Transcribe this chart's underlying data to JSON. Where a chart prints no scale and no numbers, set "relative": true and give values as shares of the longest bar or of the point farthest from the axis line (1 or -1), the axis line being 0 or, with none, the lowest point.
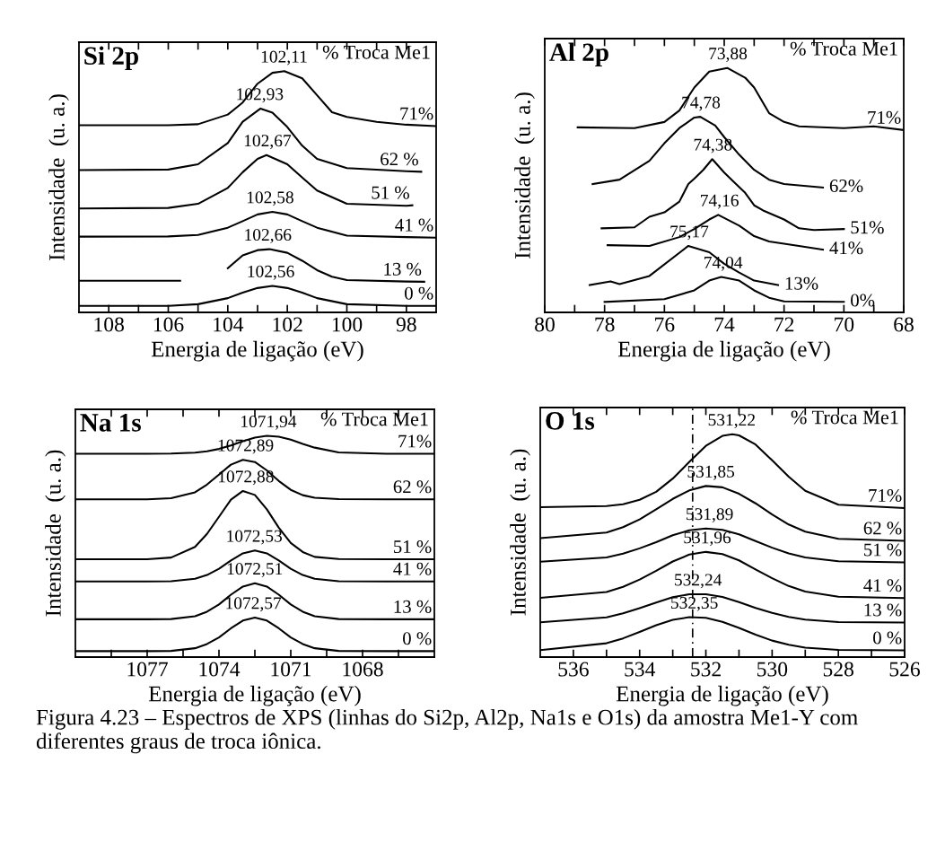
{
  "chart_data": [
    {
      "type": "line",
      "title": "Si 2p",
      "legend_title": "% Troca Me1",
      "xlabel": "Energia de ligação (eV)",
      "ylabel": "Intensidade  (u. a.)",
      "relative": true,
      "tick_labels": "x",
      "xlim": [
        109,
        97
      ],
      "xticks": [
        108,
        {
          "value": 107,
          "label": null
        },
        106,
        {
          "value": 105,
          "label": null
        },
        104,
        {
          "value": 103,
          "label": null
        },
        102,
        {
          "value": 101,
          "label": null
        },
        100,
        {
          "value": 99,
          "label": null
        },
        98
      ],
      "series": [
        {
          "name": "71%",
          "color": "#000000",
          "x": [
            109,
            106,
            105,
            104,
            103.5,
            103,
            102.5,
            102.1,
            101.5,
            101,
            100.5,
            100,
            99,
            98,
            97
          ],
          "values": [
            0.776,
            0.776,
            0.78,
            0.82,
            0.87,
            0.948,
            0.993,
            1,
            0.97,
            0.9,
            0.83,
            0.81,
            0.79,
            0.778,
            0.772
          ]
        },
        {
          "name": "62 %",
          "color": "#000000",
          "x": [
            109,
            106,
            105,
            104,
            103.5,
            102.9,
            102.5,
            102,
            101.5,
            101,
            100,
            98,
            97.5
          ],
          "values": [
            0.59,
            0.592,
            0.614,
            0.702,
            0.79,
            0.845,
            0.828,
            0.768,
            0.691,
            0.636,
            0.598,
            0.585,
            0.583
          ]
        },
        {
          "name": "51 %",
          "color": "#000000",
          "x": [
            109,
            106,
            105,
            104,
            103.5,
            103,
            102.7,
            102,
            101.5,
            101,
            100,
            98,
            97.8
          ],
          "values": [
            0.431,
            0.433,
            0.45,
            0.516,
            0.581,
            0.636,
            0.652,
            0.614,
            0.559,
            0.505,
            0.45,
            0.442,
            0.444
          ]
        },
        {
          "name": "41 %",
          "color": "#000000",
          "x": [
            109,
            106,
            105,
            104,
            103.5,
            103,
            102.5,
            102,
            101.5,
            101,
            100,
            98,
            97
          ],
          "values": [
            0.314,
            0.315,
            0.321,
            0.351,
            0.378,
            0.406,
            0.417,
            0.406,
            0.378,
            0.351,
            0.318,
            0.312,
            0.31
          ]
        },
        {
          "name": "13 %",
          "color": "#000000",
          "x": [
            109,
            107,
            105.6,
            105,
            104,
            103.5,
            103,
            102.6,
            102,
            101.5,
            101,
            100.5,
            100,
            98,
            97.4
          ],
          "values": [
            0.131,
            0.131,
            0.131,
            null,
            0.183,
            0.236,
            0.258,
            0.262,
            0.247,
            0.214,
            0.175,
            0.148,
            0.134,
            0.128,
            0.127
          ]
        },
        {
          "name": "0 %",
          "color": "#000000",
          "x": [
            109,
            106,
            105,
            104,
            103.5,
            103,
            102.5,
            102,
            101.5,
            101,
            100,
            98,
            97
          ],
          "values": [
            0.027,
            0.027,
            0.034,
            0.059,
            0.082,
            0.101,
            0.11,
            0.101,
            0.082,
            0.059,
            0.034,
            0.027,
            0.027
          ]
        }
      ],
      "annotations": [
        {
          "text": "102,11",
          "x": 102.11,
          "y": 1.0
        },
        {
          "text": "102,93",
          "x": 102.93,
          "y": 0.845
        },
        {
          "text": "102,67",
          "x": 102.67,
          "y": 0.652
        },
        {
          "text": "102,58",
          "x": 102.58,
          "y": 0.417
        },
        {
          "text": "102,66",
          "x": 102.66,
          "y": 0.262
        },
        {
          "text": "102,56",
          "x": 102.56,
          "y": 0.11
        }
      ]
    },
    {
      "type": "line",
      "title": "Al 2p",
      "legend_title": "% Troca Me1",
      "xlabel": "Energia de ligação (eV)",
      "ylabel": "Intensidade  (u. a.)",
      "relative": true,
      "tick_labels": "x",
      "xlim": [
        80,
        68
      ],
      "xticks": [
        80,
        {
          "value": 79,
          "label": null
        },
        78,
        {
          "value": 77,
          "label": null
        },
        76,
        {
          "value": 75,
          "label": null
        },
        74,
        {
          "value": 73,
          "label": null
        },
        72,
        {
          "value": 71,
          "label": null
        },
        70,
        {
          "value": 69,
          "label": null
        },
        68
      ],
      "series": [
        {
          "name": "71%",
          "color": "#000000",
          "x": [
            78.9,
            77,
            76,
            75.5,
            75,
            74.5,
            73.9,
            73.3,
            73,
            72.5,
            72,
            71.5,
            70,
            69,
            68
          ],
          "values": [
            0.757,
            0.754,
            0.779,
            0.826,
            0.92,
            0.985,
            1,
            0.96,
            0.92,
            0.815,
            0.779,
            0.761,
            0.754,
            0.761,
            0.746
          ]
        },
        {
          "name": "62%",
          "color": "#000000",
          "x": [
            78.4,
            77.5,
            76.5,
            76,
            75.5,
            75,
            74.8,
            74.3,
            74,
            73.5,
            73,
            72.5,
            72,
            70.7
          ],
          "values": [
            0.525,
            0.543,
            0.62,
            0.692,
            0.754,
            0.797,
            0.8,
            0.764,
            0.717,
            0.645,
            0.583,
            0.543,
            0.525,
            0.511
          ]
        },
        {
          "name": "51%",
          "color": "#000000",
          "x": [
            78.1,
            77,
            76.5,
            76,
            75.5,
            75.2,
            75,
            74.7,
            74.4,
            74,
            73.7,
            73.3,
            73,
            72.7,
            72,
            71.5,
            71,
            70
          ],
          "values": [
            0.344,
            0.348,
            0.391,
            0.409,
            0.453,
            0.525,
            0.547,
            0.583,
            0.627,
            0.572,
            0.536,
            0.489,
            0.438,
            0.417,
            0.38,
            0.344,
            0.337,
            0.341
          ]
        },
        {
          "name": "41%",
          "color": "#000000",
          "x": [
            77.9,
            76.5,
            75.5,
            75,
            74.5,
            74.2,
            73.5,
            73,
            72.5,
            71.5,
            70.7
          ],
          "values": [
            0.275,
            0.272,
            0.308,
            0.341,
            0.38,
            0.399,
            0.355,
            0.312,
            0.29,
            0.272,
            0.257
          ]
        },
        {
          "name": "13%",
          "color": "#000000",
          "x": [
            78.5,
            77.8,
            77.5,
            76.5,
            75.2,
            74.5,
            74,
            73.5,
            73,
            72.2
          ],
          "values": [
            0.112,
            0.127,
            0.116,
            0.149,
            0.272,
            0.246,
            0.199,
            0.163,
            0.13,
            0.112
          ]
        },
        {
          "name": "0%",
          "color": "#000000",
          "x": [
            78,
            76,
            75,
            74.5,
            74.1,
            73.5,
            73,
            72.5,
            72,
            70
          ],
          "values": [
            0.043,
            0.054,
            0.09,
            0.13,
            0.145,
            0.13,
            0.09,
            0.06,
            0.045,
            0.043
          ]
        }
      ],
      "annotations": [
        {
          "text": "73,88",
          "x": 73.88,
          "y": 1.0
        },
        {
          "text": "74,78",
          "x": 74.78,
          "y": 0.8
        },
        {
          "text": "74,38",
          "x": 74.38,
          "y": 0.627
        },
        {
          "text": "74,16",
          "x": 74.16,
          "y": 0.399
        },
        {
          "text": "75,17",
          "x": 75.17,
          "y": 0.272
        },
        {
          "text": "74,04",
          "x": 74.04,
          "y": 0.145
        }
      ]
    },
    {
      "type": "line",
      "title": "Na 1s",
      "legend_title": "% Troca Me1",
      "xlabel": "Energia de ligação (eV)",
      "ylabel": "Intensidade  (u. a.)",
      "relative": true,
      "tick_labels": "x",
      "xlim": [
        1080,
        1065
      ],
      "xticks": [
        {
          "value": 1078.5,
          "label": null
        },
        1077,
        {
          "value": 1075.5,
          "label": null
        },
        1074,
        {
          "value": 1072.5,
          "label": null
        },
        1071,
        {
          "value": 1069.5,
          "label": null
        },
        1068,
        {
          "value": 1066.5,
          "label": null
        }
      ],
      "series": [
        {
          "name": "71%",
          "color": "#000000",
          "x": [
            1080,
            1077,
            1076,
            1075,
            1074.5,
            1074,
            1073.5,
            1073,
            1072.5,
            1072,
            1071.5,
            1071,
            1070.5,
            1070,
            1069,
            1067,
            1065
          ],
          "values": [
            0.919,
            0.919,
            0.92,
            0.924,
            0.93,
            0.941,
            0.957,
            0.976,
            0.992,
            1.0,
            0.996,
            0.983,
            0.964,
            0.947,
            0.925,
            0.919,
            0.919
          ]
        },
        {
          "name": "62 %",
          "color": "#000000",
          "x": [
            1080,
            1077,
            1076,
            1075,
            1074.5,
            1074,
            1073.5,
            1073,
            1072.5,
            1072,
            1071.5,
            1071,
            1070.5,
            1070,
            1069,
            1067,
            1065
          ],
          "values": [
            0.713,
            0.713,
            0.718,
            0.745,
            0.78,
            0.825,
            0.87,
            0.892,
            0.882,
            0.844,
            0.796,
            0.756,
            0.732,
            0.72,
            0.714,
            0.713,
            0.713
          ]
        },
        {
          "name": "51 %",
          "color": "#000000",
          "x": [
            1080,
            1077,
            1076,
            1075,
            1074.5,
            1074,
            1073.5,
            1073,
            1072.5,
            1072,
            1071.5,
            1071,
            1070.5,
            1070,
            1069,
            1067,
            1065
          ],
          "values": [
            0.442,
            0.442,
            0.45,
            0.498,
            0.557,
            0.634,
            0.712,
            0.751,
            0.733,
            0.668,
            0.585,
            0.516,
            0.475,
            0.453,
            0.443,
            0.442,
            0.442
          ]
        },
        {
          "name": "41 %",
          "color": "#000000",
          "x": [
            1080,
            1077,
            1076,
            1075,
            1074.5,
            1074,
            1073.5,
            1073,
            1072.5,
            1072,
            1071.5,
            1071,
            1070.5,
            1070,
            1069,
            1067,
            1065
          ],
          "values": [
            0.342,
            0.342,
            0.343,
            0.354,
            0.371,
            0.399,
            0.437,
            0.469,
            0.482,
            0.469,
            0.437,
            0.399,
            0.371,
            0.354,
            0.343,
            0.342,
            0.342
          ]
        },
        {
          "name": "13 %",
          "color": "#000000",
          "x": [
            1080,
            1077,
            1076,
            1075,
            1074.5,
            1074,
            1073.5,
            1073,
            1072.5,
            1072,
            1071.5,
            1071,
            1070.5,
            1070,
            1069,
            1067,
            1065
          ],
          "values": [
            0.171,
            0.171,
            0.172,
            0.185,
            0.205,
            0.238,
            0.282,
            0.319,
            0.334,
            0.319,
            0.282,
            0.238,
            0.205,
            0.185,
            0.172,
            0.171,
            0.171
          ]
        },
        {
          "name": "0 %",
          "color": "#000000",
          "x": [
            1080,
            1077,
            1076,
            1075,
            1074.5,
            1074,
            1073.5,
            1073,
            1072.5,
            1072,
            1071.5,
            1071,
            1070.5,
            1070,
            1069,
            1067,
            1065
          ],
          "values": [
            0.027,
            0.027,
            0.028,
            0.04,
            0.059,
            0.089,
            0.13,
            0.165,
            0.179,
            0.165,
            0.13,
            0.089,
            0.059,
            0.04,
            0.028,
            0.027,
            0.027
          ]
        }
      ],
      "annotations": [
        {
          "text": "1071,94",
          "x": 1071.94,
          "y": 1.0
        },
        {
          "text": "1072,89",
          "x": 1072.89,
          "y": 0.892
        },
        {
          "text": "1072,88",
          "x": 1072.88,
          "y": 0.751
        },
        {
          "text": "1072,53",
          "x": 1072.53,
          "y": 0.482
        },
        {
          "text": "1072,51",
          "x": 1072.51,
          "y": 0.334
        },
        {
          "text": "1072,57",
          "x": 1072.57,
          "y": 0.179
        }
      ]
    },
    {
      "type": "line",
      "title": "O 1s",
      "legend_title": "% Troca Me1",
      "xlabel": "Energia de ligação (eV)",
      "ylabel": "Intensidade  (u. a.)",
      "relative": true,
      "tick_labels": "x",
      "xlim": [
        537,
        526
      ],
      "xticks": [
        536,
        {
          "value": 535,
          "label": null
        },
        534,
        {
          "value": 533,
          "label": null
        },
        532,
        {
          "value": 531,
          "label": null
        },
        530,
        {
          "value": 529,
          "label": null
        },
        528,
        {
          "value": 527,
          "label": null
        },
        526
      ],
      "ref_lines": [
        {
          "axis": "x",
          "value": 532.4,
          "color": "#000000",
          "line_style": "dashed"
        }
      ],
      "series": [
        {
          "name": "71%",
          "color": "#000000",
          "x": [
            537,
            535,
            534.5,
            534,
            533.5,
            533,
            532.5,
            532,
            531.5,
            531.2,
            531,
            530.5,
            530,
            529.5,
            529,
            528,
            526
          ],
          "values": [
            0.673,
            0.678,
            0.686,
            0.706,
            0.742,
            0.801,
            0.876,
            0.948,
            0.993,
            1.0,
            0.995,
            0.954,
            0.883,
            0.81,
            0.746,
            0.684,
            0.669
          ]
        },
        {
          "name": "62 %",
          "color": "#000000",
          "x": [
            537,
            535,
            534.5,
            534,
            533.5,
            533,
            532.5,
            532,
            531.5,
            531,
            530.5,
            530,
            529.5,
            529,
            528,
            526
          ],
          "values": [
            0.534,
            0.559,
            0.583,
            0.618,
            0.663,
            0.71,
            0.748,
            0.768,
            0.762,
            0.733,
            0.69,
            0.64,
            0.595,
            0.563,
            0.531,
            0.522
          ]
        },
        {
          "name": "51 %",
          "color": "#000000",
          "x": [
            537,
            535,
            534.5,
            534,
            533.5,
            533,
            532.5,
            532,
            531.5,
            531,
            530.5,
            530,
            529.5,
            529,
            528,
            526
          ],
          "values": [
            0.428,
            0.447,
            0.464,
            0.488,
            0.516,
            0.547,
            0.569,
            0.577,
            0.571,
            0.551,
            0.521,
            0.491,
            0.465,
            0.447,
            0.43,
            0.425
          ]
        },
        {
          "name": "41 %",
          "color": "#000000",
          "x": [
            537,
            535,
            534.5,
            534,
            533.5,
            533,
            532.5,
            532,
            531.5,
            531,
            530.5,
            530,
            529.5,
            529,
            528,
            526
          ],
          "values": [
            0.266,
            0.292,
            0.315,
            0.348,
            0.387,
            0.429,
            0.46,
            0.472,
            0.462,
            0.434,
            0.393,
            0.354,
            0.319,
            0.294,
            0.271,
            0.265
          ]
        },
        {
          "name": "13 %",
          "color": "#000000",
          "x": [
            537,
            535,
            534.5,
            534,
            533.5,
            533,
            532.5,
            532,
            531.5,
            531,
            530.5,
            530,
            529.5,
            529,
            528,
            526
          ],
          "values": [
            0.156,
            0.178,
            0.196,
            0.22,
            0.245,
            0.269,
            0.282,
            0.282,
            0.27,
            0.247,
            0.221,
            0.198,
            0.18,
            0.168,
            0.157,
            0.155
          ]
        },
        {
          "name": "0 %",
          "color": "#000000",
          "x": [
            537,
            535,
            534.5,
            534,
            533.5,
            533,
            532.5,
            532,
            531.5,
            531,
            530.5,
            530,
            529.5,
            529,
            528,
            526
          ],
          "values": [
            0.031,
            0.062,
            0.084,
            0.113,
            0.143,
            0.167,
            0.179,
            0.176,
            0.158,
            0.131,
            0.101,
            0.074,
            0.055,
            0.042,
            0.032,
            0.03
          ]
        }
      ],
      "annotations": [
        {
          "text": "531,22",
          "x": 531.22,
          "y": 1.0
        },
        {
          "text": "531,85",
          "x": 531.85,
          "y": 0.768
        },
        {
          "text": "531,89",
          "x": 531.89,
          "y": 0.577
        },
        {
          "text": "531,96",
          "x": 531.96,
          "y": 0.472
        },
        {
          "text": "532,24",
          "x": 532.24,
          "y": 0.282
        },
        {
          "text": "532,35",
          "x": 532.35,
          "y": 0.179
        },
        "Figura 4.23 – Espectros de XPS (linhas do Si2p, Al2p, Na1s e O1s) da amostra Me1-Y com diferentes graus de troca iônica."
      ]
    }
  ]
}
